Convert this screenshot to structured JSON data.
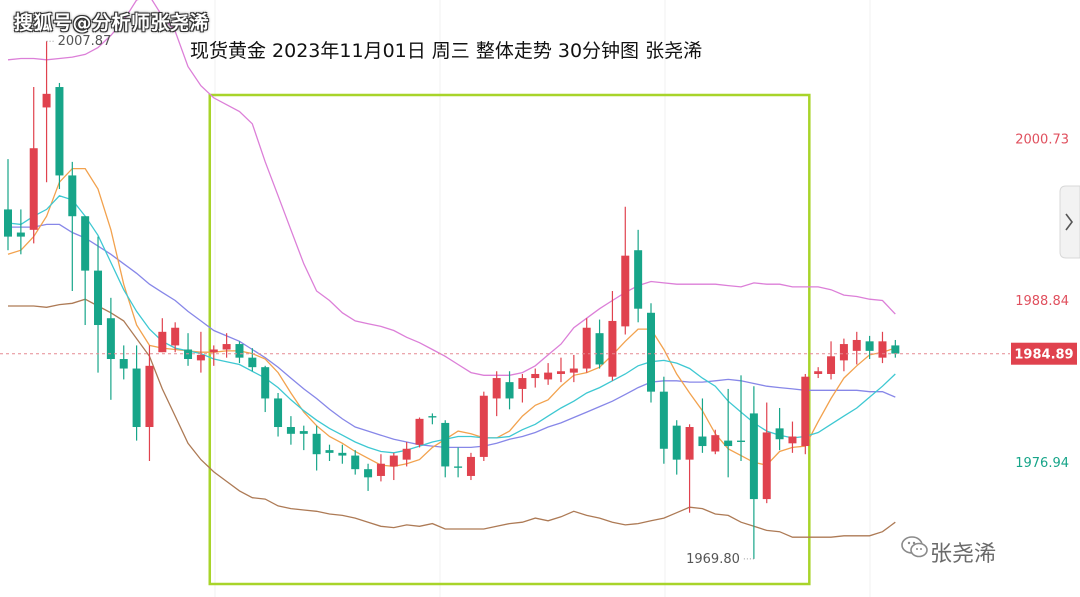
{
  "watermark_top_left": "搜狐号@分析师张尧浠",
  "watermark_bottom_right": "张尧浠",
  "chart_data": {
    "type": "candlestick",
    "title": "现货黄金 2023年11月01日 周三 整体走势 30分钟图 张尧浠",
    "y_ticks": [
      {
        "value": 2000.73,
        "label": "2000.73",
        "color": "#e0505e"
      },
      {
        "value": 1988.84,
        "label": "1988.84",
        "color": "#e0505e"
      },
      {
        "value": 1976.94,
        "label": "1976.94",
        "color": "#17a589"
      }
    ],
    "current_price": {
      "value": 1984.89,
      "label": "1984.89",
      "color": "#e0424e"
    },
    "annotations": [
      {
        "label": "2007.87",
        "value": 2007.87,
        "candle": 3
      },
      {
        "label": "1969.80",
        "value": 1969.8,
        "candle": 58
      }
    ],
    "ylim": [
      1967.0,
      2010.9
    ],
    "up_color": "#e0424e",
    "down_color": "#17a589",
    "highlight_box": {
      "from_candle": 16,
      "to_candle": 62,
      "color": "#a8d42a"
    },
    "candles": [
      [
        1995.5,
        1999.2,
        1992.5,
        1993.5
      ],
      [
        1993.8,
        1995.5,
        1992.2,
        1993.5
      ],
      [
        1994.0,
        2004.5,
        1993.0,
        2000.0
      ],
      [
        2003.0,
        2007.87,
        1997.5,
        2004.0
      ],
      [
        2004.5,
        2004.8,
        1997.0,
        1998.0
      ],
      [
        1998.0,
        1999.0,
        1989.5,
        1995.0
      ],
      [
        1995.0,
        1995.0,
        1987.0,
        1991.0
      ],
      [
        1991.0,
        1993.5,
        1983.5,
        1987.0
      ],
      [
        1987.5,
        1989.0,
        1981.5,
        1984.5
      ],
      [
        1984.5,
        1985.5,
        1983.0,
        1983.8
      ],
      [
        1983.8,
        1985.5,
        1978.5,
        1979.5
      ],
      [
        1979.5,
        1985.5,
        1977.0,
        1984.0
      ],
      [
        1985.0,
        1987.5,
        1985.0,
        1986.5
      ],
      [
        1985.5,
        1987.2,
        1985.0,
        1986.8
      ],
      [
        1985.2,
        1986.4,
        1984.0,
        1984.5
      ],
      [
        1984.4,
        1986.5,
        1983.5,
        1984.8
      ],
      [
        1985.0,
        1985.5,
        1984.0,
        1985.2
      ],
      [
        1985.2,
        1986.4,
        1984.6,
        1985.6
      ],
      [
        1985.6,
        1985.8,
        1984.2,
        1984.6
      ],
      [
        1984.6,
        1985.3,
        1983.6,
        1983.9
      ],
      [
        1983.9,
        1984.0,
        1980.6,
        1981.6
      ],
      [
        1981.6,
        1982.0,
        1978.8,
        1979.5
      ],
      [
        1979.5,
        1980.3,
        1978.2,
        1979.0
      ],
      [
        1979.2,
        1979.6,
        1977.8,
        1979.0
      ],
      [
        1979.0,
        1979.6,
        1976.3,
        1977.5
      ],
      [
        1977.8,
        1978.2,
        1977.0,
        1977.6
      ],
      [
        1977.6,
        1978.2,
        1976.8,
        1977.4
      ],
      [
        1977.4,
        1977.8,
        1976.0,
        1976.4
      ],
      [
        1976.4,
        1976.8,
        1974.8,
        1975.8
      ],
      [
        1975.9,
        1977.5,
        1975.5,
        1976.8
      ],
      [
        1976.6,
        1977.6,
        1975.6,
        1977.4
      ],
      [
        1977.1,
        1978.4,
        1976.6,
        1977.9
      ],
      [
        1978.2,
        1980.2,
        1978.0,
        1980.1
      ],
      [
        1980.3,
        1980.5,
        1979.7,
        1980.2
      ],
      [
        1979.8,
        1980.0,
        1975.8,
        1976.6
      ],
      [
        1976.6,
        1978.0,
        1975.8,
        1976.5
      ],
      [
        1975.9,
        1977.6,
        1975.6,
        1977.3
      ],
      [
        1977.3,
        1982.1,
        1977.0,
        1981.8
      ],
      [
        1981.6,
        1983.6,
        1980.3,
        1983.1
      ],
      [
        1982.8,
        1983.6,
        1980.8,
        1981.6
      ],
      [
        1982.3,
        1983.4,
        1981.3,
        1983.1
      ],
      [
        1983.1,
        1983.8,
        1982.4,
        1983.4
      ],
      [
        1983.0,
        1984.2,
        1982.6,
        1983.5
      ],
      [
        1983.4,
        1984.6,
        1982.8,
        1983.6
      ],
      [
        1983.5,
        1984.8,
        1982.8,
        1983.8
      ],
      [
        1983.8,
        1987.5,
        1983.5,
        1986.8
      ],
      [
        1986.4,
        1987.4,
        1983.8,
        1984.1
      ],
      [
        1983.2,
        1989.5,
        1982.9,
        1987.3
      ],
      [
        1986.9,
        1995.7,
        1986.3,
        1992.1
      ],
      [
        1992.5,
        1994.0,
        1987.2,
        1988.2
      ],
      [
        1987.9,
        1988.6,
        1981.3,
        1982.1
      ],
      [
        1982.1,
        1983.2,
        1976.8,
        1977.9
      ],
      [
        1979.6,
        1980.0,
        1976.0,
        1977.1
      ],
      [
        1977.1,
        1979.7,
        1973.2,
        1979.5
      ],
      [
        1978.8,
        1981.6,
        1977.6,
        1978.1
      ],
      [
        1977.7,
        1979.3,
        1977.5,
        1978.9
      ],
      [
        1978.5,
        1982.3,
        1975.8,
        1978.1
      ],
      [
        1978.5,
        1983.3,
        1977.0,
        1978.4
      ],
      [
        1980.5,
        1982.5,
        1969.8,
        1974.2
      ],
      [
        1974.2,
        1981.3,
        1973.9,
        1979.1
      ],
      [
        1979.4,
        1980.9,
        1977.8,
        1978.6
      ],
      [
        1978.3,
        1979.9,
        1977.6,
        1978.8
      ],
      [
        1978.1,
        1983.4,
        1977.5,
        1983.2
      ],
      [
        1983.4,
        1983.9,
        1983.1,
        1983.6
      ],
      [
        1983.4,
        1985.8,
        1983.0,
        1984.7
      ],
      [
        1984.4,
        1986.0,
        1983.6,
        1985.6
      ],
      [
        1985.1,
        1986.5,
        1984.1,
        1985.9
      ],
      [
        1985.8,
        1986.2,
        1984.5,
        1985.1
      ],
      [
        1984.6,
        1986.5,
        1984.2,
        1985.8
      ],
      [
        1985.5,
        1985.9,
        1984.6,
        1984.9
      ]
    ],
    "indicators": [
      {
        "name": "boll_upper",
        "color": "#dc7fd8",
        "values": [
          2006.5,
          2006.6,
          2006.6,
          2006.5,
          2006.6,
          2006.7,
          2006.9,
          2007.4,
          2008.3,
          2009.4,
          2010.9,
          2011.2,
          2009.7,
          2008.6,
          2006.0,
          2004.6,
          2003.7,
          2003.2,
          2002.7,
          2001.8,
          1999.0,
          1996.5,
          1994.0,
          1991.5,
          1989.5,
          1988.8,
          1987.9,
          1987.3,
          1987.1,
          1986.9,
          1986.6,
          1986.1,
          1985.7,
          1985.2,
          1984.7,
          1984.1,
          1983.5,
          1983.3,
          1983.3,
          1983.3,
          1983.5,
          1984.0,
          1984.8,
          1985.6,
          1986.8,
          1987.5,
          1988.2,
          1988.8,
          1989.4,
          1989.9,
          1990.2,
          1990.1,
          1990.0,
          1990.0,
          1990.0,
          1990.0,
          1989.9,
          1989.8,
          1990.1,
          1990.0,
          1990.0,
          1989.8,
          1989.8,
          1989.8,
          1989.6,
          1989.2,
          1989.1,
          1988.9,
          1988.8,
          1987.8
        ]
      },
      {
        "name": "boll_mid",
        "color": "#8787e8",
        "values": [
          1994.2,
          1994.2,
          1994.2,
          1994.4,
          1994.4,
          1993.8,
          1993.4,
          1992.8,
          1992.2,
          1991.5,
          1990.8,
          1990.0,
          1989.4,
          1988.8,
          1988.0,
          1987.3,
          1986.6,
          1986.2,
          1985.8,
          1985.2,
          1984.6,
          1983.9,
          1983.1,
          1982.3,
          1981.6,
          1980.8,
          1980.1,
          1979.5,
          1979.2,
          1978.9,
          1978.6,
          1978.4,
          1978.2,
          1978.1,
          1978.0,
          1978.0,
          1978.0,
          1978.1,
          1978.3,
          1978.6,
          1978.8,
          1979.1,
          1979.5,
          1979.8,
          1980.2,
          1980.6,
          1981.0,
          1981.4,
          1981.9,
          1982.4,
          1982.8,
          1982.9,
          1982.9,
          1982.8,
          1982.8,
          1982.9,
          1983.0,
          1982.9,
          1982.7,
          1982.5,
          1982.4,
          1982.3,
          1982.2,
          1982.2,
          1982.2,
          1982.2,
          1982.2,
          1982.1,
          1982.1,
          1981.7
        ]
      },
      {
        "name": "boll_lower",
        "color": "#ad7a55",
        "values": [
          1988.4,
          1988.4,
          1988.4,
          1988.3,
          1988.5,
          1988.6,
          1988.9,
          1988.4,
          1987.9,
          1987.3,
          1986.0,
          1984.7,
          1982.3,
          1980.3,
          1978.3,
          1977.1,
          1976.2,
          1975.5,
          1974.8,
          1974.3,
          1974.2,
          1973.7,
          1973.5,
          1973.4,
          1973.3,
          1973.1,
          1973.0,
          1972.8,
          1972.5,
          1972.2,
          1972.1,
          1972.3,
          1972.2,
          1972.4,
          1972.0,
          1972.0,
          1972.0,
          1972.0,
          1972.2,
          1972.4,
          1972.5,
          1972.8,
          1972.6,
          1972.9,
          1973.3,
          1973.0,
          1972.8,
          1972.5,
          1972.3,
          1972.4,
          1972.6,
          1972.8,
          1973.2,
          1973.6,
          1973.5,
          1973.1,
          1973.0,
          1972.5,
          1972.2,
          1971.9,
          1971.8,
          1971.4,
          1971.4,
          1971.4,
          1971.4,
          1971.5,
          1971.5,
          1971.5,
          1971.8,
          1972.5
        ]
      },
      {
        "name": "ma_fast",
        "color": "#f2a24e",
        "values": [
          1992.2,
          1992.5,
          1993.5,
          1995.0,
          1997.5,
          1998.5,
          1998.5,
          1997.0,
          1994.0,
          1990.0,
          1987.0,
          1985.5,
          1985.3,
          1985.2,
          1985.1,
          1985.0,
          1985.0,
          1985.1,
          1985.1,
          1984.9,
          1984.5,
          1983.5,
          1982.0,
          1980.6,
          1979.6,
          1978.8,
          1978.3,
          1977.7,
          1977.2,
          1976.7,
          1976.6,
          1976.8,
          1977.1,
          1978.0,
          1978.6,
          1979.2,
          1979.0,
          1978.7,
          1978.7,
          1979.2,
          1980.3,
          1981.1,
          1981.5,
          1982.5,
          1983.3,
          1983.5,
          1983.9,
          1984.8,
          1985.8,
          1986.7,
          1986.7,
          1985.2,
          1983.4,
          1982.0,
          1980.7,
          1979.0,
          1977.9,
          1977.4,
          1976.9,
          1976.7,
          1977.7,
          1978.0,
          1978.1,
          1979.9,
          1981.6,
          1983.1,
          1984.0,
          1984.8,
          1985.0,
          1985.3
        ]
      },
      {
        "name": "ma_slow",
        "color": "#3ec8d2",
        "values": [
          1994.5,
          1994.4,
          1995.0,
          1995.5,
          1996.5,
          1996.2,
          1995.0,
          1993.6,
          1991.6,
          1989.6,
          1988.0,
          1986.7,
          1985.8,
          1985.3,
          1985.1,
          1984.9,
          1984.5,
          1984.3,
          1984.1,
          1983.6,
          1983.1,
          1982.4,
          1981.5,
          1980.7,
          1980.0,
          1979.4,
          1978.9,
          1978.4,
          1978.0,
          1977.7,
          1977.6,
          1977.8,
          1978.1,
          1978.4,
          1978.6,
          1978.8,
          1978.8,
          1978.7,
          1978.7,
          1978.8,
          1979.3,
          1979.7,
          1980.3,
          1980.9,
          1981.4,
          1982.0,
          1982.4,
          1982.9,
          1983.4,
          1984.0,
          1984.3,
          1984.4,
          1984.2,
          1983.8,
          1983.1,
          1982.5,
          1981.4,
          1980.6,
          1979.8,
          1979.2,
          1978.9,
          1978.7,
          1978.8,
          1979.1,
          1979.7,
          1980.3,
          1980.9,
          1981.7,
          1982.5,
          1983.4
        ]
      }
    ]
  }
}
